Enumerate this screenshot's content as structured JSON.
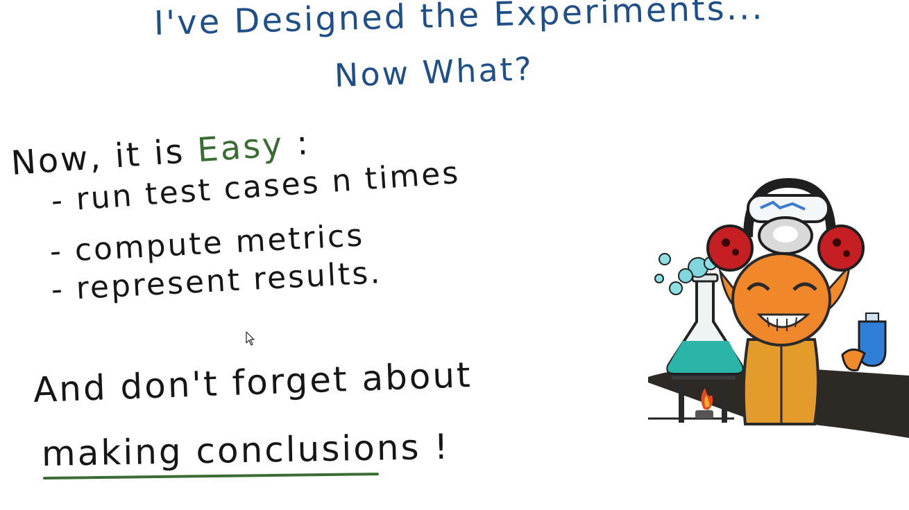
{
  "title": {
    "line1": "I've Designed the Experiments...",
    "line2": "Now What?"
  },
  "intro": {
    "prefix": "Now, it is ",
    "emphasis": "Easy",
    "suffix": " :"
  },
  "steps": [
    "- run test cases n times",
    "- compute metrics",
    "- represent results."
  ],
  "reminder": {
    "line1": "And don't forget about",
    "line2": "making conclusions !"
  },
  "colors": {
    "title_ink": "#1f4f86",
    "text_ink": "#161616",
    "emphasis_green": "#3b6c33"
  },
  "icons": [
    "mouse-pointer-icon",
    "scientist-mascot-illustration"
  ]
}
